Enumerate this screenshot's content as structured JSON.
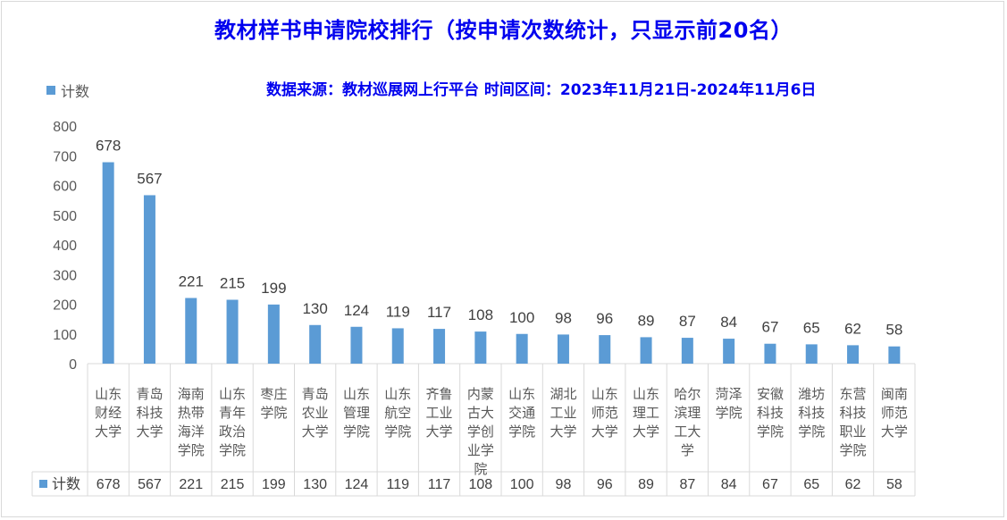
{
  "chart_data": {
    "type": "bar",
    "title": "教材样书申请院校排行（按申请次数统计，只显示前20名）",
    "subtitle": "数据来源：教材巡展网上行平台 时间区间：2023年11月21日-2024年11月6日",
    "legend_position": "top-left",
    "ylim": [
      0,
      800
    ],
    "yticks": [
      0,
      100,
      200,
      300,
      400,
      500,
      600,
      700,
      800
    ],
    "grid": false,
    "data_table": true,
    "series": [
      {
        "name": "计数",
        "color": "#5b9bd5",
        "values": [
          678,
          567,
          221,
          215,
          199,
          130,
          124,
          119,
          117,
          108,
          100,
          98,
          96,
          89,
          87,
          84,
          67,
          65,
          62,
          58
        ]
      }
    ],
    "categories": [
      "山东财经大学",
      "青岛科技大学",
      "海南热带海洋学院",
      "山东青年政治学院",
      "枣庄学院",
      "青岛农业大学",
      "山东管理学院",
      "山东航空学院",
      "齐鲁工业大学",
      "内蒙古大学创业学院",
      "山东交通学院",
      "湖北工业大学",
      "山东师范大学",
      "山东理工大学",
      "哈尔滨理工大学",
      "菏泽学院",
      "安徽科技学院",
      "潍坊科技学院",
      "东营科技职业学院",
      "闽南师范大学"
    ]
  }
}
